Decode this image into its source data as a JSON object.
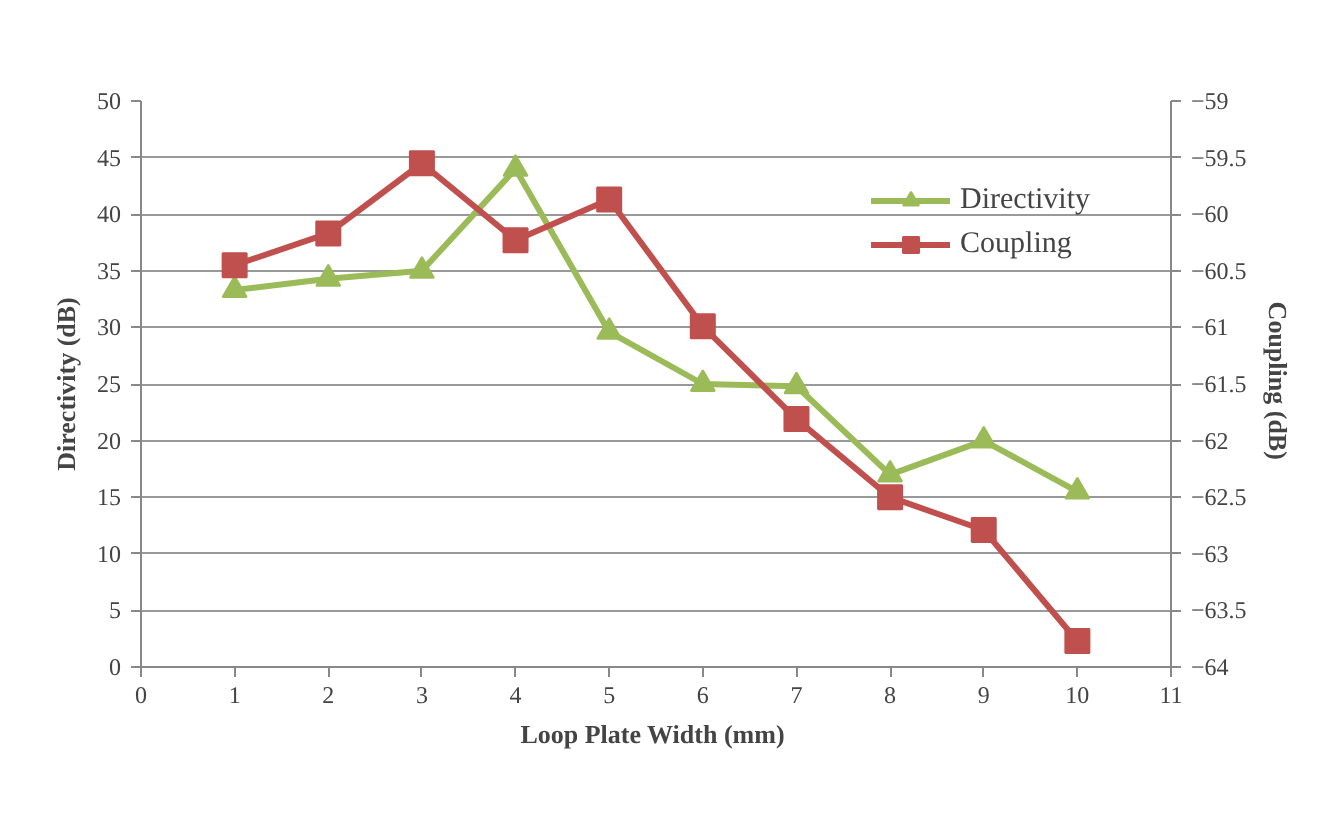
{
  "chart_data": {
    "type": "line",
    "xlabel": "Loop Plate Width  (mm)",
    "ylabel": "Directivity (dB)",
    "y2label": "Coupling  (dB)",
    "x": [
      1,
      2,
      3,
      4,
      5,
      6,
      7,
      8,
      9,
      10
    ],
    "series": [
      {
        "name": "Directivity",
        "color": "#9bbb59",
        "marker": "triangle",
        "values": [
          33.3,
          34.3,
          35,
          44,
          29.6,
          25,
          24.8,
          17,
          20,
          15.5
        ]
      },
      {
        "name": "Coupling",
        "color": "#c0504d",
        "marker": "square",
        "axis": "y2",
        "values": [
          -60.45,
          -60.17,
          -59.55,
          -60.23,
          -59.87,
          -60.99,
          -61.81,
          -62.5,
          -62.79,
          -63.77
        ]
      }
    ],
    "xlim": [
      0,
      11
    ],
    "xticks": [
      0,
      1,
      2,
      3,
      4,
      5,
      6,
      7,
      8,
      9,
      10,
      11
    ],
    "ylim": [
      0,
      50
    ],
    "yticks": [
      0,
      5,
      10,
      15,
      20,
      25,
      30,
      35,
      40,
      45,
      50
    ],
    "y2lim": [
      -64,
      -59
    ],
    "y2ticks": [
      -64,
      -63.5,
      -63,
      -62.5,
      -62,
      -61.5,
      -61,
      -60.5,
      -60,
      -59.5,
      -59
    ],
    "grid": "y",
    "legend": "top right",
    "line_style": "solid"
  }
}
